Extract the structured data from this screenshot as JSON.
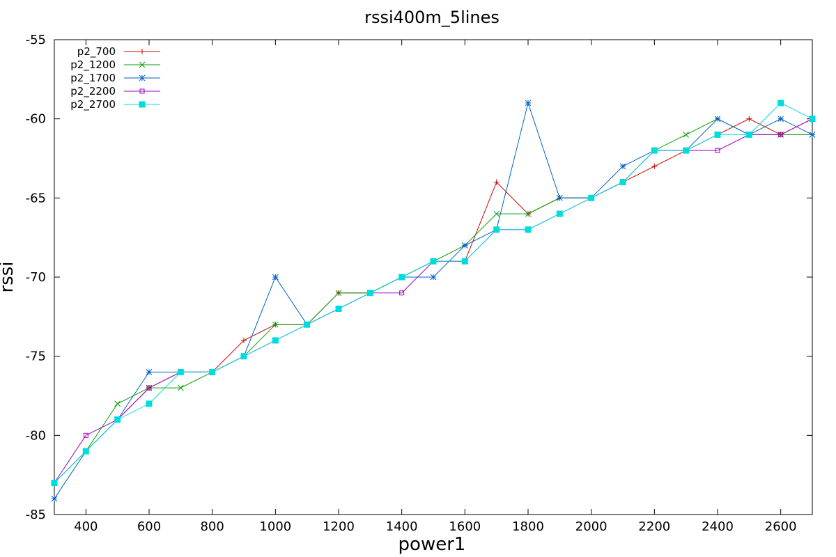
{
  "chart_data": {
    "type": "line",
    "title": "rssi400m_5lines",
    "xlabel": "power1",
    "ylabel": "rssi",
    "xlim": [
      300,
      2700
    ],
    "ylim": [
      -85,
      -55
    ],
    "xticks": [
      400,
      600,
      800,
      1000,
      1200,
      1400,
      1600,
      1800,
      2000,
      2200,
      2400,
      2600
    ],
    "yticks": [
      -85,
      -80,
      -75,
      -70,
      -65,
      -60,
      -55
    ],
    "grid": false,
    "legend_position": "top-left",
    "x": [
      300,
      400,
      500,
      600,
      700,
      800,
      900,
      1000,
      1100,
      1200,
      1300,
      1400,
      1500,
      1600,
      1700,
      1800,
      1900,
      2000,
      2100,
      2200,
      2300,
      2400,
      2500,
      2600,
      2700
    ],
    "series": [
      {
        "name": "p2_700",
        "color": "#cc0000",
        "marker": "plus",
        "values": [
          -83,
          -81,
          -79,
          -77,
          -76,
          -76,
          -74,
          -73,
          -73,
          -71,
          -71,
          -70,
          -69,
          -69,
          -64,
          -66,
          -65,
          -65,
          -64,
          -63,
          -62,
          -61,
          -60,
          -61,
          -60
        ]
      },
      {
        "name": "p2_1200",
        "color": "#00a000",
        "marker": "cross",
        "values": [
          -83,
          -81,
          -78,
          -77,
          -77,
          -76,
          -75,
          -73,
          -73,
          -71,
          -71,
          -70,
          -69,
          -68,
          -66,
          -66,
          -65,
          -65,
          -64,
          -62,
          -61,
          -60,
          -61,
          -61,
          -61
        ]
      },
      {
        "name": "p2_1700",
        "color": "#0060c8",
        "marker": "star",
        "values": [
          -84,
          -81,
          -79,
          -76,
          -76,
          -76,
          -75,
          -70,
          -73,
          -72,
          -71,
          -70,
          -70,
          -68,
          -67,
          -59,
          -65,
          -65,
          -63,
          -62,
          -62,
          -60,
          -61,
          -60,
          -61
        ]
      },
      {
        "name": "p2_2200",
        "color": "#a000c0",
        "marker": "square-open",
        "values": [
          -83,
          -80,
          -79,
          -77,
          -76,
          -76,
          -75,
          -74,
          -73,
          -72,
          -71,
          -71,
          -69,
          -69,
          -67,
          -67,
          -66,
          -65,
          -64,
          -62,
          -62,
          -62,
          -61,
          -61,
          -60
        ]
      },
      {
        "name": "p2_2700",
        "color": "#00dcdc",
        "marker": "square-filled",
        "values": [
          -83,
          -81,
          -79,
          -78,
          -76,
          -76,
          -75,
          -74,
          -73,
          -72,
          -71,
          -70,
          -69,
          -69,
          -67,
          -67,
          -66,
          -65,
          -64,
          -62,
          -62,
          -61,
          -61,
          -59,
          -60
        ]
      }
    ]
  }
}
